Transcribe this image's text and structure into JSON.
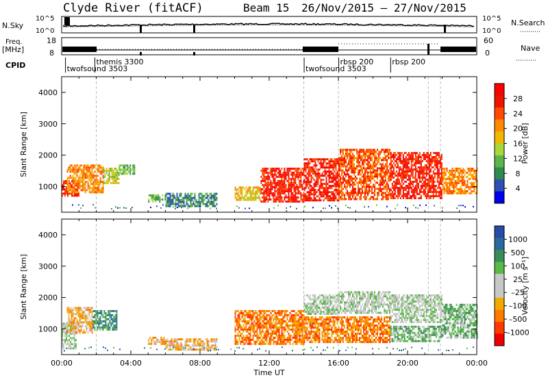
{
  "header": {
    "radar": "Clyde River (fitACF)",
    "beam": "Beam 15",
    "date_range": "26/Nov/2015 – 27/Nov/2015"
  },
  "top_panels": {
    "nsky_label": "N.Sky",
    "nsky_ticks": [
      "10^5",
      "10^0"
    ],
    "nsearch_label": "N.Search",
    "nsearch_ticks": [
      "10^5",
      "10^0"
    ],
    "freq_label": "Freq.",
    "freq_unit": "[MHz]",
    "freq_ticks": [
      "18",
      "8"
    ],
    "nave_label": "Nave",
    "nave_ticks": [
      "60",
      "0"
    ],
    "cpid_label": "CPID",
    "cpid_entries": [
      {
        "label": "twofsound 3503",
        "hour": 0.3
      },
      {
        "label": "themis 3300",
        "hour": 2.0
      },
      {
        "label": "twofsound 3503",
        "hour": 14.1
      },
      {
        "label": "rbsp 200",
        "hour": 16.1
      },
      {
        "label": "rbsp 200",
        "hour": 19.1
      }
    ]
  },
  "colors": {
    "power_scale": [
      "#0000ee",
      "#2e50b4",
      "#2f8a4e",
      "#5cb54a",
      "#a8d83a",
      "#f0b800",
      "#ff8a00",
      "#ff4a00",
      "#ee1400",
      "#ff0000"
    ],
    "velocity_scale": [
      "#2a4aa8",
      "#2b6aa0",
      "#3b8c56",
      "#5aba48",
      "#c8c8c8",
      "#c8c8c8",
      "#f0aa00",
      "#ff7a00",
      "#ff3a00",
      "#ee0000"
    ]
  },
  "chart_data": [
    {
      "type": "heatmap",
      "name": "Power",
      "ylabel": "Slant Range [km]",
      "xlim": [
        0,
        24
      ],
      "ylim": [
        180,
        4500
      ],
      "yticks": [
        "1000",
        "2000",
        "3000",
        "4000"
      ],
      "colorbar_label": "Power [dB]",
      "colorbar_ticks": [
        "4",
        "8",
        "12",
        "16",
        "20",
        "24",
        "28"
      ],
      "bands": [
        {
          "x": [
            0.0,
            1.0
          ],
          "y": [
            700,
            1200
          ],
          "level": 8
        },
        {
          "x": [
            0.3,
            2.4
          ],
          "y": [
            800,
            1700
          ],
          "level": 6
        },
        {
          "x": [
            2.4,
            3.3
          ],
          "y": [
            1100,
            1600
          ],
          "level": 4
        },
        {
          "x": [
            3.3,
            4.2
          ],
          "y": [
            1400,
            1700
          ],
          "level": 3
        },
        {
          "x": [
            5.0,
            6.1
          ],
          "y": [
            500,
            750
          ],
          "level": 3
        },
        {
          "x": [
            6.0,
            9.0
          ],
          "y": [
            350,
            800
          ],
          "level": 2
        },
        {
          "x": [
            10.0,
            11.5
          ],
          "y": [
            550,
            1000
          ],
          "level": 5
        },
        {
          "x": [
            11.5,
            14.0
          ],
          "y": [
            500,
            1600
          ],
          "level": 8
        },
        {
          "x": [
            14.0,
            16.0
          ],
          "y": [
            550,
            1900
          ],
          "level": 8
        },
        {
          "x": [
            16.0,
            19.0
          ],
          "y": [
            600,
            2200
          ],
          "level": 7
        },
        {
          "x": [
            19.0,
            22.0
          ],
          "y": [
            600,
            2100
          ],
          "level": 8
        },
        {
          "x": [
            22.0,
            24.0
          ],
          "y": [
            800,
            1600
          ],
          "level": 6
        }
      ]
    },
    {
      "type": "heatmap",
      "name": "Velocity",
      "ylabel": "Slant Range [km]",
      "xlabel": "Time UT",
      "xlim": [
        0,
        24
      ],
      "ylim": [
        180,
        4500
      ],
      "xticks": [
        "00:00",
        "04:00",
        "08:00",
        "12:00",
        "16:00",
        "20:00",
        "00:00"
      ],
      "yticks": [
        "1000",
        "2000",
        "3000",
        "4000"
      ],
      "colorbar_label": "Velocity [m s⁻¹]",
      "colorbar_ticks": [
        "1000",
        "500",
        "100",
        "25",
        "–25",
        "–100",
        "–500",
        "–1000"
      ],
      "bands": [
        {
          "x": [
            0.0,
            0.8
          ],
          "y": [
            400,
            1200
          ],
          "level": 4
        },
        {
          "x": [
            0.3,
            1.8
          ],
          "y": [
            900,
            1700
          ],
          "level": 6
        },
        {
          "x": [
            1.8,
            3.2
          ],
          "y": [
            1000,
            1600
          ],
          "level": 2
        },
        {
          "x": [
            5.0,
            6.0
          ],
          "y": [
            500,
            750
          ],
          "level": 6
        },
        {
          "x": [
            6.0,
            9.0
          ],
          "y": [
            350,
            700
          ],
          "level": 6
        },
        {
          "x": [
            10.0,
            14.0
          ],
          "y": [
            550,
            1600
          ],
          "level": 7
        },
        {
          "x": [
            14.0,
            16.0
          ],
          "y": [
            550,
            1400
          ],
          "level": 7
        },
        {
          "x": [
            14.0,
            16.0
          ],
          "y": [
            1500,
            2100
          ],
          "level": 4
        },
        {
          "x": [
            16.0,
            19.0
          ],
          "y": [
            600,
            1400
          ],
          "level": 7
        },
        {
          "x": [
            16.0,
            19.0
          ],
          "y": [
            1500,
            2200
          ],
          "level": 4
        },
        {
          "x": [
            19.0,
            22.0
          ],
          "y": [
            600,
            1100
          ],
          "level": 3
        },
        {
          "x": [
            19.0,
            22.0
          ],
          "y": [
            1200,
            2100
          ],
          "level": 4
        },
        {
          "x": [
            22.0,
            24.0
          ],
          "y": [
            700,
            1800
          ],
          "level": 3
        }
      ]
    }
  ]
}
